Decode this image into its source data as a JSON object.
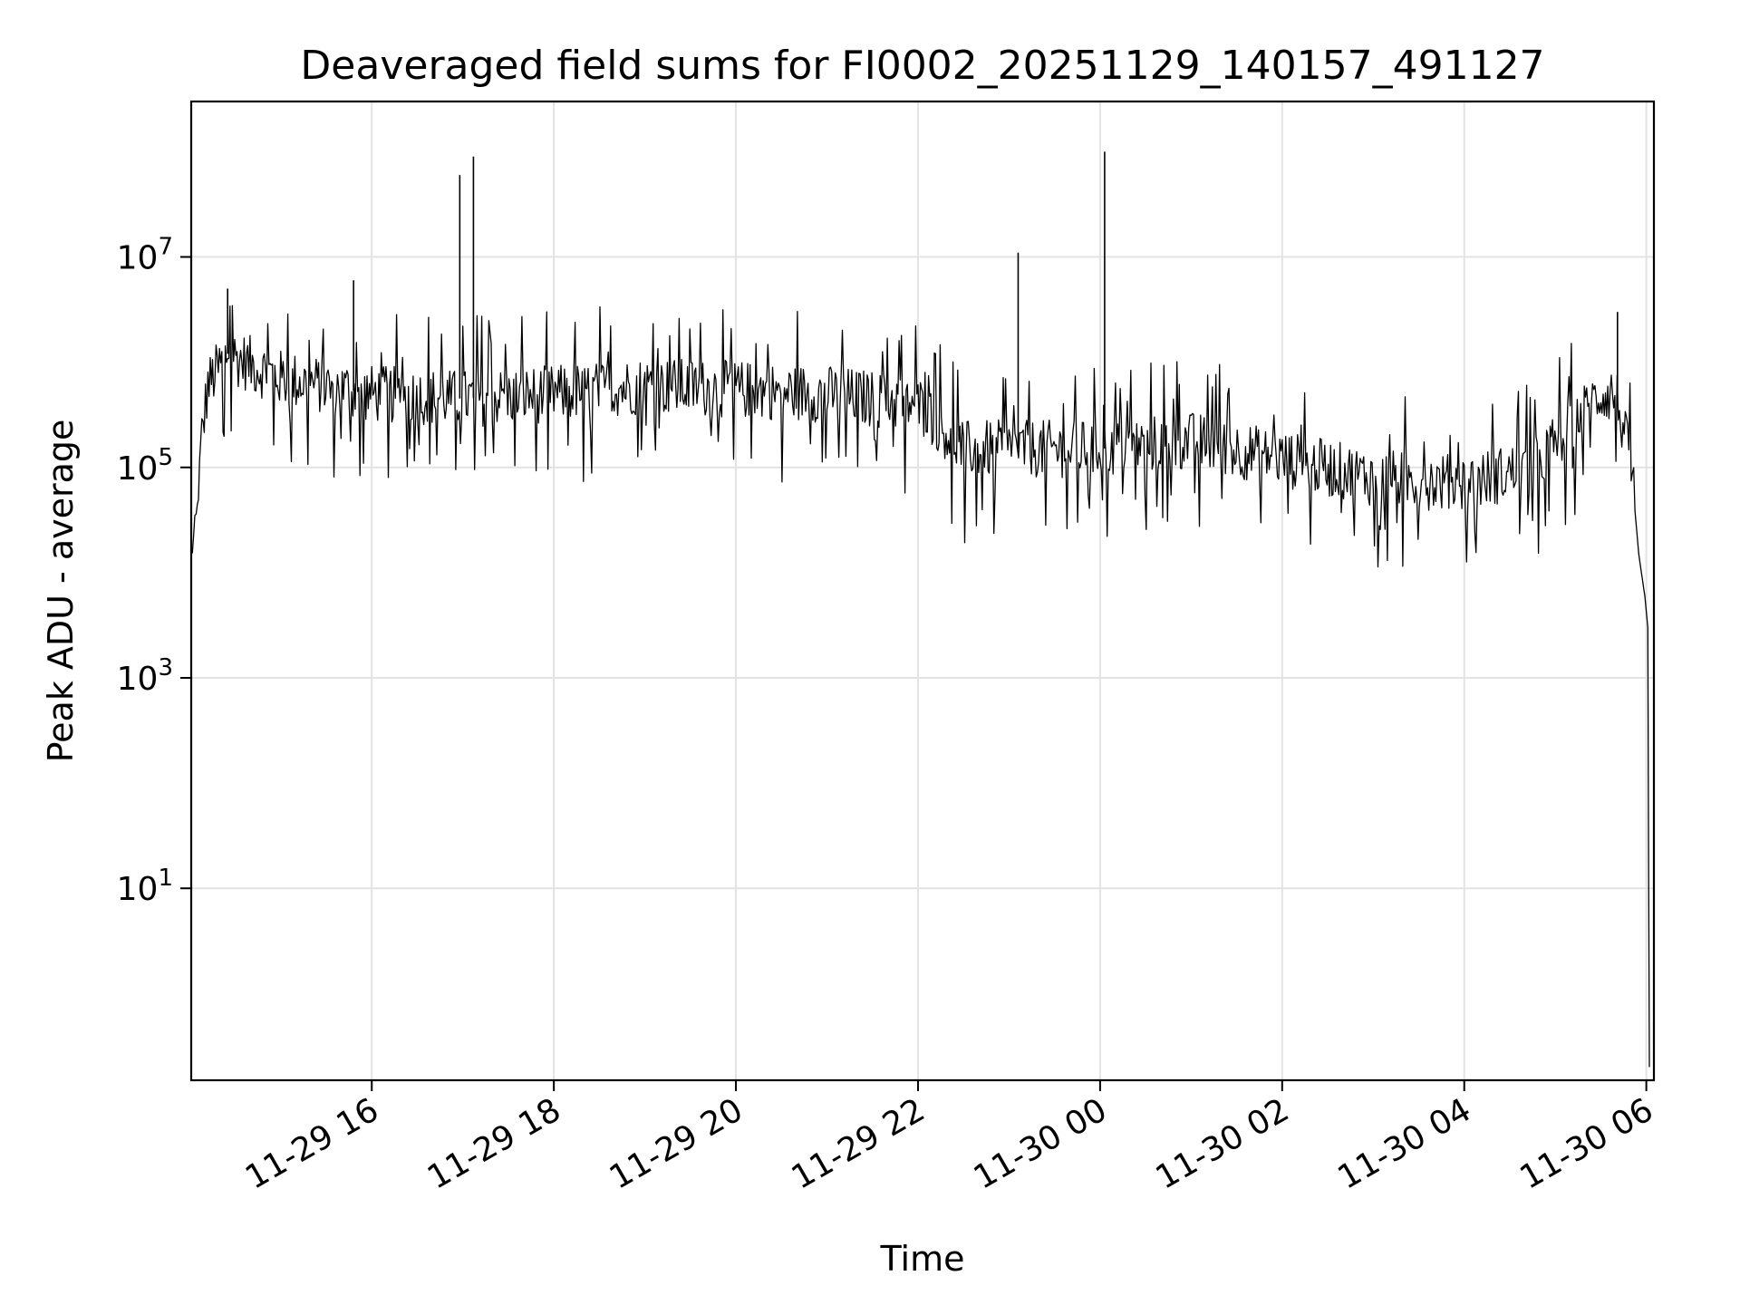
{
  "chart_data": {
    "type": "line",
    "title": "Deaveraged field sums for FI0002_20251129_140157_491127",
    "xlabel": "Time",
    "ylabel": "Peak ADU - average",
    "y_scale": "log",
    "grid": true,
    "line_color": "#000000",
    "x_ticks": [
      "11-29 16",
      "11-29 18",
      "11-29 20",
      "11-29 22",
      "11-30 00",
      "11-30 02",
      "11-30 04",
      "11-30 06"
    ],
    "y_ticks": [
      {
        "base": "10",
        "exp": "1",
        "value": 10
      },
      {
        "base": "10",
        "exp": "3",
        "value": 1000
      },
      {
        "base": "10",
        "exp": "5",
        "value": 100000
      },
      {
        "base": "10",
        "exp": "7",
        "value": 10000000
      }
    ],
    "xlim": [
      "2025-11-29 14:01",
      "2025-11-30 06:05"
    ],
    "ylim": [
      0.15,
      300000000
    ],
    "series": [
      {
        "values": [
          [
            "2025-11-29 14:01",
            14000
          ],
          [
            "2025-11-29 14:05",
            40000
          ],
          [
            "2025-11-29 14:08",
            200000
          ],
          [
            "2025-11-29 14:12",
            600000
          ],
          [
            "2025-11-29 14:25",
            1200000
          ],
          [
            "2025-11-29 15:00",
            700000
          ],
          [
            "2025-11-29 16:00",
            500000
          ],
          [
            "2025-11-29 17:00",
            450000
          ],
          [
            "2025-11-29 18:00",
            500000
          ],
          [
            "2025-11-29 19:00",
            600000
          ],
          [
            "2025-11-29 20:00",
            550000
          ],
          [
            "2025-11-29 21:00",
            500000
          ],
          [
            "2025-11-29 22:00",
            400000
          ],
          [
            "2025-11-29 22:30",
            150000
          ],
          [
            "2025-11-29 23:00",
            150000
          ],
          [
            "2025-11-30 00:00",
            150000
          ],
          [
            "2025-11-30 01:00",
            180000
          ],
          [
            "2025-11-30 02:00",
            120000
          ],
          [
            "2025-11-30 03:00",
            80000
          ],
          [
            "2025-11-30 04:00",
            70000
          ],
          [
            "2025-11-30 04:45",
            100000
          ],
          [
            "2025-11-30 05:30",
            500000
          ],
          [
            "2025-11-30 05:40",
            500000
          ],
          [
            "2025-11-30 05:50",
            100000
          ],
          [
            "2025-11-30 05:55",
            15000
          ],
          [
            "2025-11-30 05:59",
            6000
          ],
          [
            "2025-11-30 06:01",
            3000
          ],
          [
            "2025-11-30 06:02",
            0.2
          ]
        ]
      }
    ],
    "spikes": [
      [
        "2025-11-29 14:25",
        5000000
      ],
      [
        "2025-11-29 15:48",
        6000000
      ],
      [
        "2025-11-29 16:58",
        60000000
      ],
      [
        "2025-11-29 17:07",
        90000000
      ],
      [
        "2025-11-29 23:06",
        11000000
      ],
      [
        "2025-11-30 00:03",
        100000000
      ],
      [
        "2025-11-30 05:41",
        3000000
      ]
    ]
  }
}
